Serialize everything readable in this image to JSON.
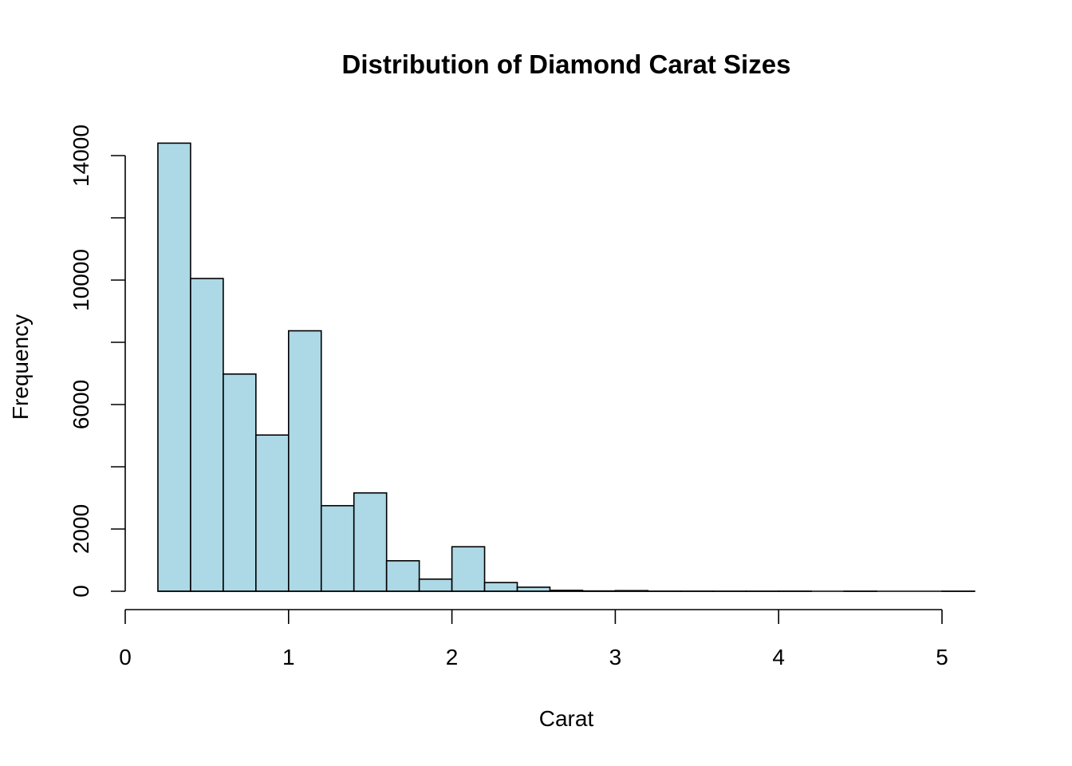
{
  "chart_data": {
    "type": "histogram",
    "title": "Distribution of Diamond Carat Sizes",
    "xlabel": "Carat",
    "ylabel": "Frequency",
    "bar_color": "#add8e6",
    "border_color": "#000000",
    "bin_width": 0.2,
    "bins": [
      {
        "start": 0.2,
        "end": 0.4,
        "count": 14400
      },
      {
        "start": 0.4,
        "end": 0.6,
        "count": 10050
      },
      {
        "start": 0.6,
        "end": 0.8,
        "count": 6980
      },
      {
        "start": 0.8,
        "end": 1.0,
        "count": 5020
      },
      {
        "start": 1.0,
        "end": 1.2,
        "count": 8370
      },
      {
        "start": 1.2,
        "end": 1.4,
        "count": 2750
      },
      {
        "start": 1.4,
        "end": 1.6,
        "count": 3160
      },
      {
        "start": 1.6,
        "end": 1.8,
        "count": 980
      },
      {
        "start": 1.8,
        "end": 2.0,
        "count": 390
      },
      {
        "start": 2.0,
        "end": 2.2,
        "count": 1430
      },
      {
        "start": 2.2,
        "end": 2.4,
        "count": 280
      },
      {
        "start": 2.4,
        "end": 2.6,
        "count": 130
      },
      {
        "start": 2.6,
        "end": 2.8,
        "count": 30
      },
      {
        "start": 2.8,
        "end": 3.0,
        "count": 10
      },
      {
        "start": 3.0,
        "end": 3.2,
        "count": 20
      },
      {
        "start": 3.2,
        "end": 3.4,
        "count": 2
      },
      {
        "start": 3.4,
        "end": 3.6,
        "count": 2
      },
      {
        "start": 3.6,
        "end": 3.8,
        "count": 1
      },
      {
        "start": 3.8,
        "end": 4.0,
        "count": 1
      },
      {
        "start": 4.0,
        "end": 4.2,
        "count": 2
      },
      {
        "start": 4.2,
        "end": 4.4,
        "count": 0
      },
      {
        "start": 4.4,
        "end": 4.6,
        "count": 1
      },
      {
        "start": 4.6,
        "end": 4.8,
        "count": 0
      },
      {
        "start": 4.8,
        "end": 5.0,
        "count": 0
      },
      {
        "start": 5.0,
        "end": 5.2,
        "count": 1
      }
    ],
    "xlim": [
      0,
      5.2
    ],
    "ylim": [
      0,
      14400
    ],
    "x_ticks": [
      0,
      1,
      2,
      3,
      4,
      5
    ],
    "y_ticks": [
      0,
      2000,
      4000,
      6000,
      8000,
      10000,
      12000,
      14000
    ],
    "y_tick_labels_shown": [
      "0",
      "2000",
      "6000",
      "10000",
      "14000"
    ],
    "grid": false
  }
}
